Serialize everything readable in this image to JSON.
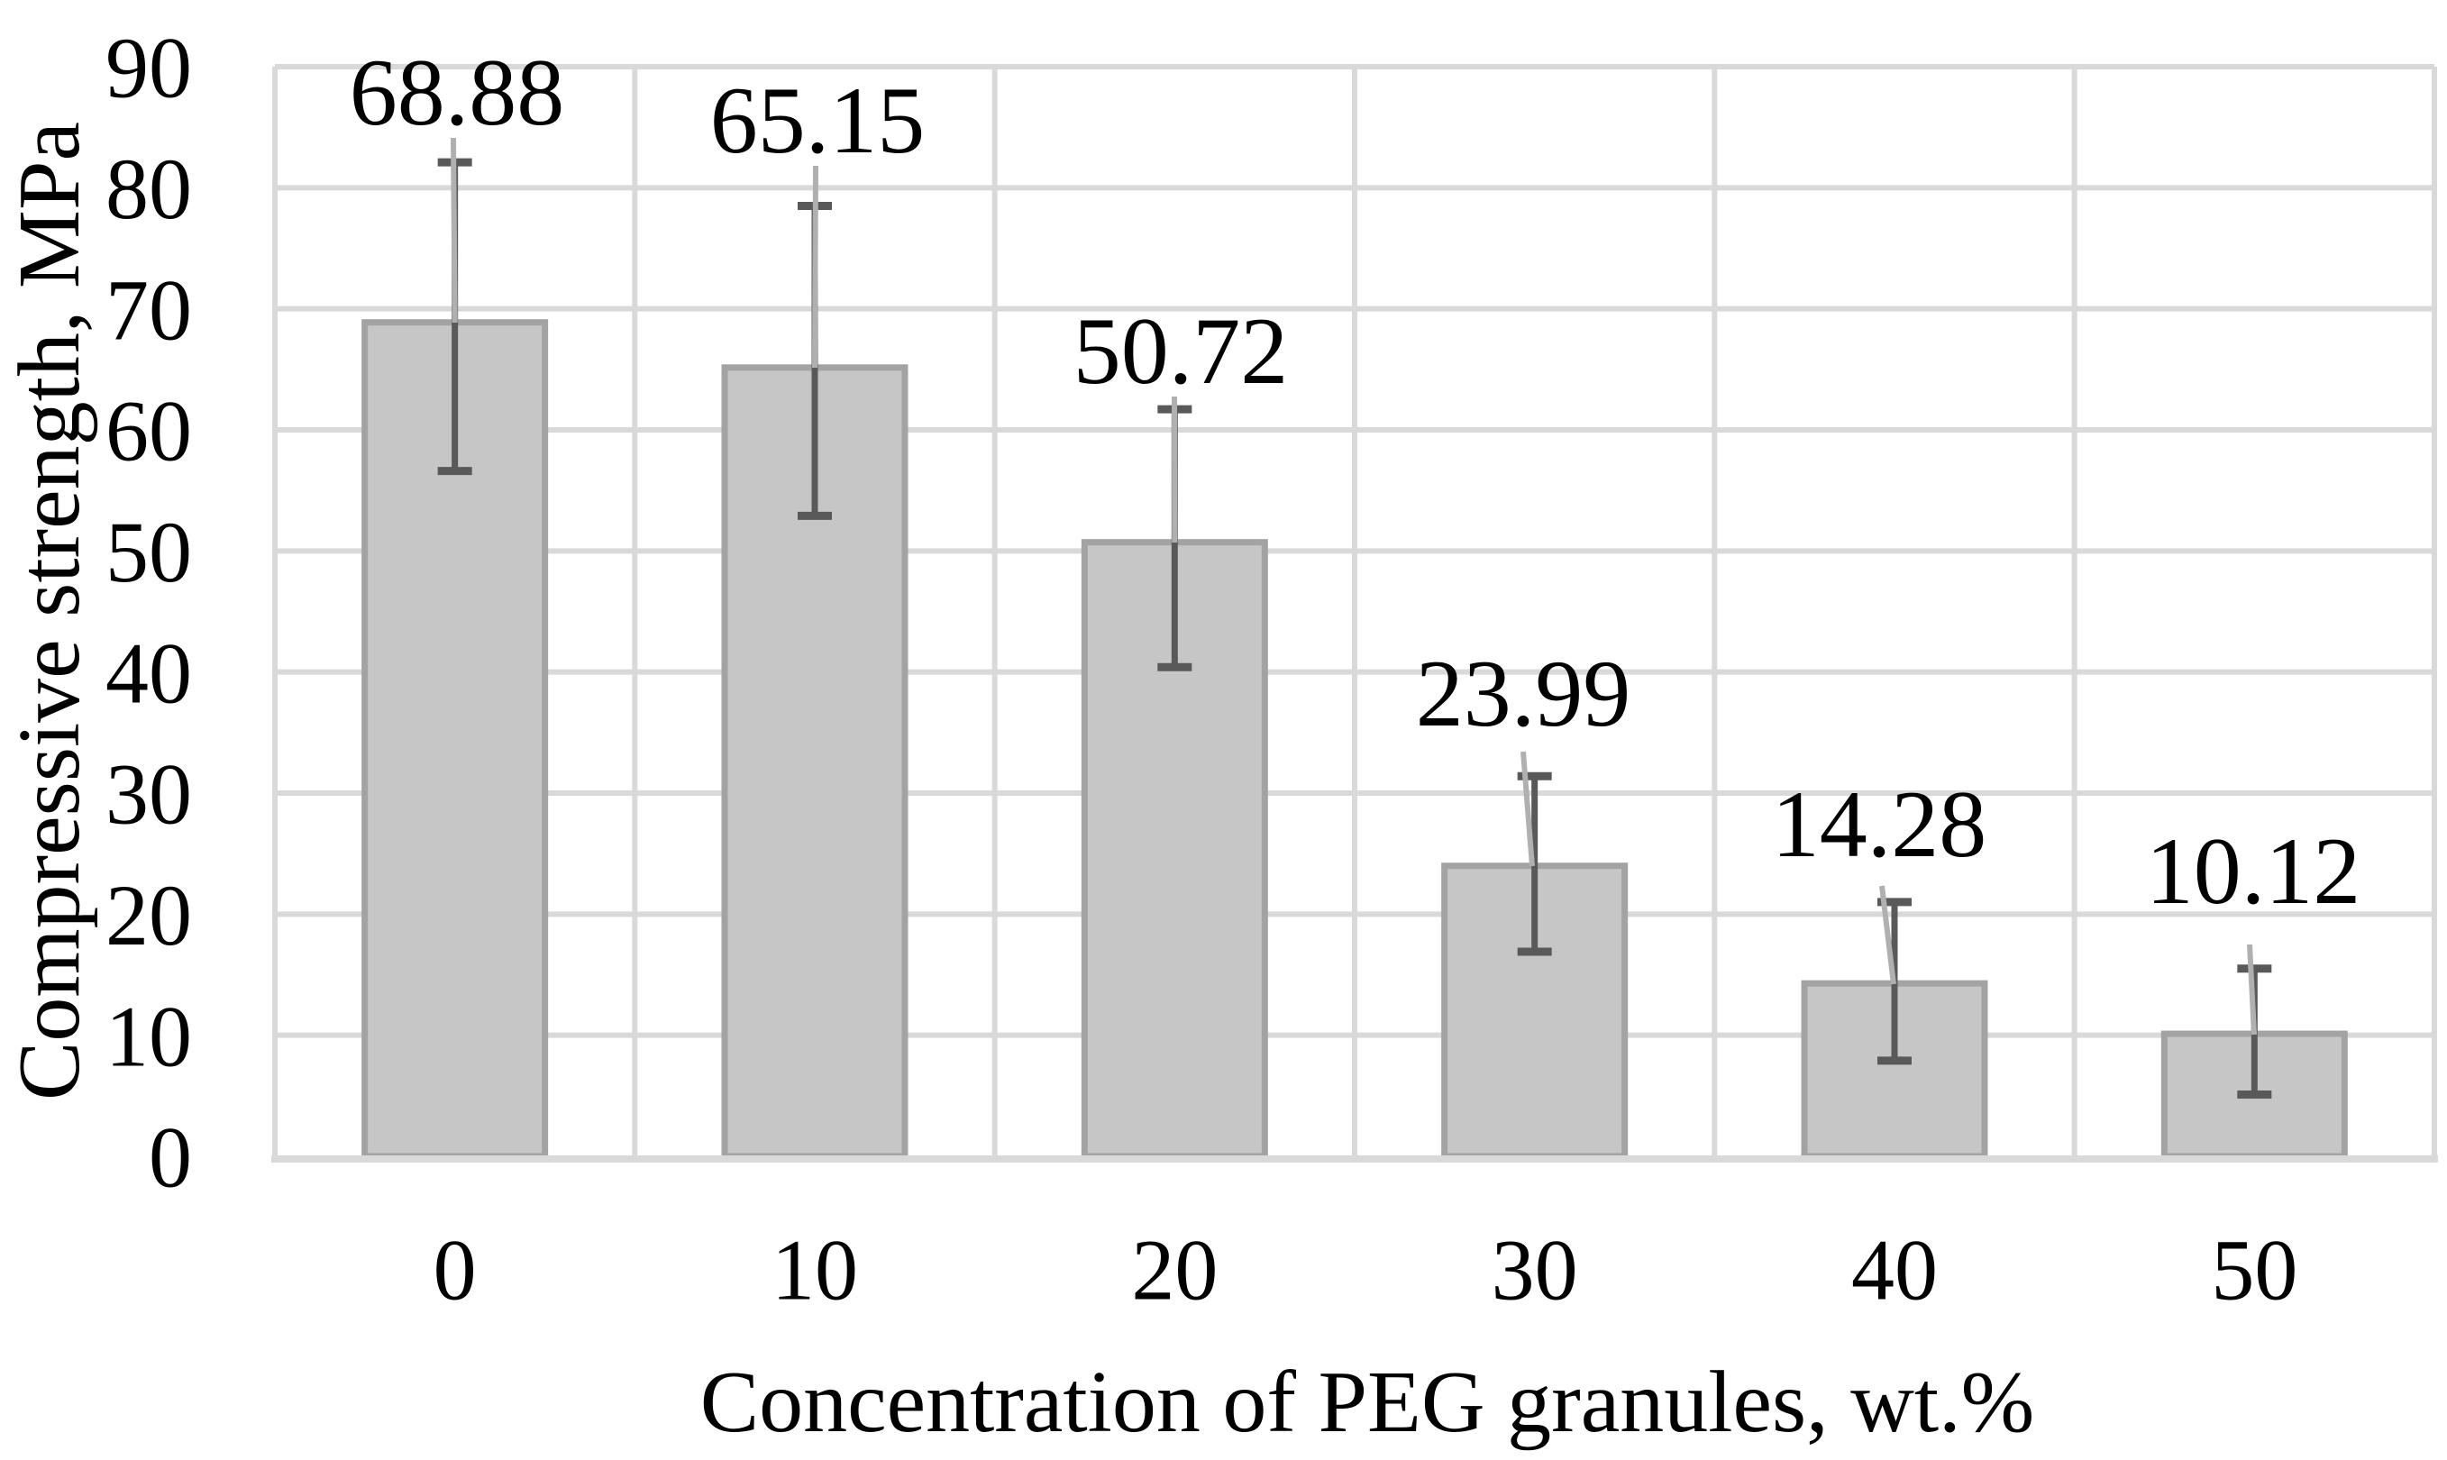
{
  "chart_data": {
    "type": "bar",
    "title": "",
    "xlabel": "Concentration of PEG granules, wt.%",
    "ylabel": "Compressive strength, MPa",
    "categories": [
      "0",
      "10",
      "20",
      "30",
      "40",
      "50"
    ],
    "values": [
      68.88,
      65.15,
      50.72,
      23.99,
      14.28,
      10.12
    ],
    "data_labels": [
      "68.88",
      "65.15",
      "50.72",
      "23.99",
      "14.28",
      "10.12"
    ],
    "error_bars": {
      "upper": [
        82.1,
        78.5,
        61.7,
        31.4,
        21.0,
        15.5
      ],
      "lower": [
        56.6,
        52.9,
        40.4,
        16.9,
        7.9,
        5.1
      ]
    },
    "ylim": [
      0,
      90
    ],
    "yticks": [
      0,
      10,
      20,
      30,
      40,
      50,
      60,
      70,
      80,
      90
    ],
    "grid": true,
    "legend": false,
    "colors": {
      "background": "#ffffff",
      "bar_fill": "#c6c6c6",
      "bar_border": "#a3a3a3",
      "gridline": "#d9d9d9",
      "error_bar": "#595959",
      "leader_line": "#b0b0b0",
      "text": "#000000"
    }
  }
}
